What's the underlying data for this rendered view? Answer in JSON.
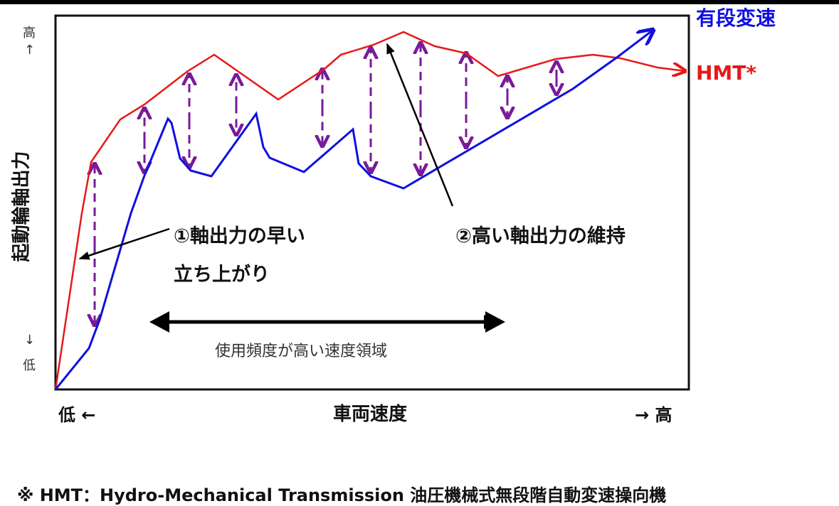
{
  "legend": {
    "stepped": "有段変速",
    "hmt": "HMT*"
  },
  "colors": {
    "stepped": "#1010e0",
    "hmt": "#e81818",
    "gap_arrows": "#7a1a9a",
    "annotation": "#000000"
  },
  "axes": {
    "ylabel": "起動輪軸出力",
    "y_high": "高",
    "y_high_arrow": "↑",
    "y_low_arrow": "↓",
    "y_low": "低",
    "x_low": "低 ←",
    "xlabel": "車両速度",
    "x_high": "→ 高"
  },
  "annotations": {
    "point1_line1": "①軸出力の早い",
    "point1_line2": "立ち上がり",
    "point2": "②高い軸出力の維持",
    "range": "使用頻度が高い速度領域"
  },
  "footnote": "※ HMT：Hydro-Mechanical Transmission 油圧機械式無段階自動変速操向機"
}
